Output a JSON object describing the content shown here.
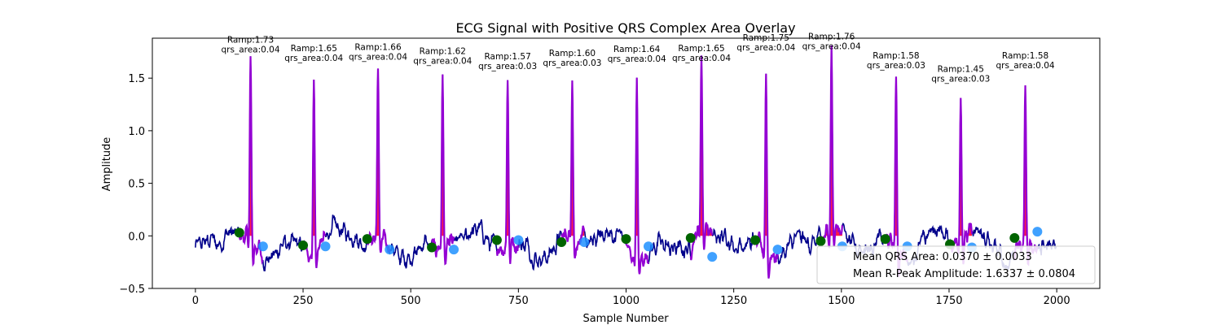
{
  "chart_data": {
    "type": "line",
    "title": "ECG Signal with Positive QRS Complex Area Overlay",
    "xlabel": "Sample Number",
    "ylabel": "Amplitude",
    "xlim": [
      -100,
      2100
    ],
    "ylim": [
      -0.5,
      1.88
    ],
    "xticks": [
      0,
      250,
      500,
      750,
      1000,
      1250,
      1500,
      1750,
      2000
    ],
    "yticks": [
      -0.5,
      0.0,
      0.5,
      1.0,
      1.5
    ],
    "xtick_labels": [
      "0",
      "250",
      "500",
      "750",
      "1000",
      "1250",
      "1500",
      "1750",
      "2000"
    ],
    "ytick_labels": [
      "−0.5",
      "0.0",
      "0.5",
      "1.0",
      "1.5"
    ],
    "colors": {
      "signal": "#00008b",
      "qrs_segment": "#9400d3",
      "qrs_area_fill": "#ff0033",
      "q_marker": "#006400",
      "s_marker": "#1e90ff"
    },
    "beats": [
      {
        "r": 128,
        "amp": 1.73,
        "q": 102,
        "s": 157,
        "q_y": 0.03,
        "s_y": -0.1,
        "ramp_label": "Ramp:1.73",
        "area_label": "qrs_area:0.04"
      },
      {
        "r": 275,
        "amp": 1.65,
        "q": 250,
        "s": 302,
        "q_y": -0.09,
        "s_y": -0.1,
        "ramp_label": "Ramp:1.65",
        "area_label": "qrs_area:0.04"
      },
      {
        "r": 424,
        "amp": 1.66,
        "q": 399,
        "s": 451,
        "q_y": -0.03,
        "s_y": -0.13,
        "ramp_label": "Ramp:1.66",
        "area_label": "qrs_area:0.04"
      },
      {
        "r": 574,
        "amp": 1.62,
        "q": 549,
        "s": 600,
        "q_y": -0.11,
        "s_y": -0.13,
        "ramp_label": "Ramp:1.62",
        "area_label": "qrs_area:0.04"
      },
      {
        "r": 725,
        "amp": 1.57,
        "q": 700,
        "s": 750,
        "q_y": -0.04,
        "s_y": -0.04,
        "ramp_label": "Ramp:1.57",
        "area_label": "qrs_area:0.03"
      },
      {
        "r": 875,
        "amp": 1.6,
        "q": 850,
        "s": 903,
        "q_y": -0.06,
        "s_y": -0.06,
        "ramp_label": "Ramp:1.60",
        "area_label": "qrs_area:0.03"
      },
      {
        "r": 1025,
        "amp": 1.64,
        "q": 1000,
        "s": 1052,
        "q_y": -0.03,
        "s_y": -0.1,
        "ramp_label": "Ramp:1.64",
        "area_label": "qrs_area:0.04"
      },
      {
        "r": 1175,
        "amp": 1.65,
        "q": 1150,
        "s": 1200,
        "q_y": -0.02,
        "s_y": -0.2,
        "ramp_label": "Ramp:1.65",
        "area_label": "qrs_area:0.04"
      },
      {
        "r": 1325,
        "amp": 1.75,
        "q": 1300,
        "s": 1352,
        "q_y": -0.04,
        "s_y": -0.13,
        "ramp_label": "Ramp:1.75",
        "area_label": "qrs_area:0.04"
      },
      {
        "r": 1477,
        "amp": 1.76,
        "q": 1452,
        "s": 1502,
        "q_y": -0.05,
        "s_y": -0.1,
        "ramp_label": "Ramp:1.76",
        "area_label": "qrs_area:0.04"
      },
      {
        "r": 1627,
        "amp": 1.58,
        "q": 1602,
        "s": 1653,
        "q_y": -0.03,
        "s_y": -0.1,
        "ramp_label": "Ramp:1.58",
        "area_label": "qrs_area:0.03"
      },
      {
        "r": 1777,
        "amp": 1.45,
        "q": 1752,
        "s": 1803,
        "q_y": -0.08,
        "s_y": -0.11,
        "ramp_label": "Ramp:1.45",
        "area_label": "qrs_area:0.03"
      },
      {
        "r": 1927,
        "amp": 1.58,
        "q": 1902,
        "s": 1955,
        "q_y": -0.02,
        "s_y": 0.04,
        "ramp_label": "Ramp:1.58",
        "area_label": "qrs_area:0.04"
      }
    ],
    "legend": {
      "placement": "lower-right",
      "entries": [
        "Mean QRS Area: 0.0370 ± 0.0033",
        "Mean R-Peak Amplitude: 1.6337 ± 0.0804"
      ]
    }
  }
}
